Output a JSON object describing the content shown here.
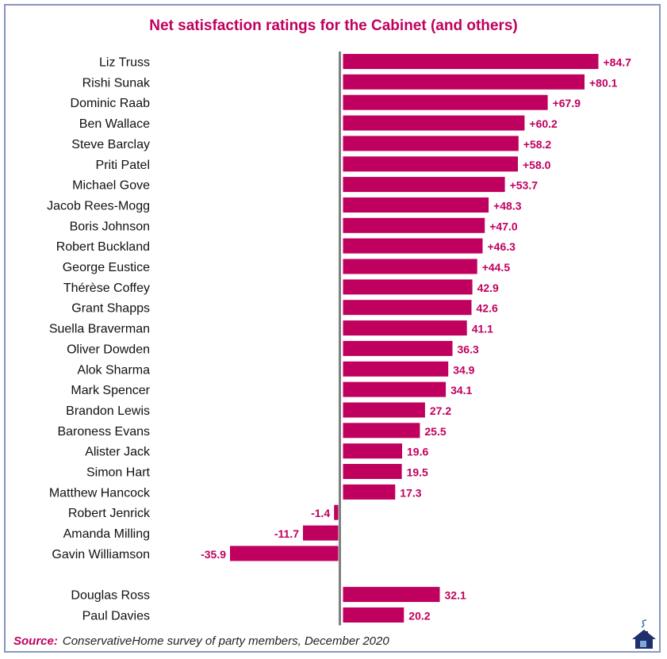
{
  "colors": {
    "bar": "#c0005e",
    "label": "#c0005e",
    "axis": "#808080",
    "border": "#8796c2"
  },
  "source": {
    "label": "Source:",
    "text": "ConservativeHome survey of party members, December 2020"
  },
  "logo_icon": "conservativehome-house-icon",
  "chart_data": {
    "type": "bar",
    "orientation": "horizontal",
    "title": "Net satisfaction ratings for the Cabinet (and others)",
    "xlim": [
      -50,
      90
    ],
    "grid": false,
    "legend": "none",
    "groups": [
      {
        "categories": [
          "Liz Truss",
          "Rishi Sunak",
          "Dominic Raab",
          "Ben Wallace",
          "Steve Barclay",
          "Priti Patel",
          "Michael Gove",
          "Jacob Rees-Mogg",
          "Boris Johnson",
          "Robert Buckland",
          "George Eustice",
          "Thérèse Coffey",
          "Grant Shapps",
          "Suella Braverman",
          "Oliver Dowden",
          "Alok Sharma",
          "Mark Spencer",
          "Brandon Lewis",
          "Baroness Evans",
          "Alister Jack",
          "Simon Hart",
          "Matthew Hancock",
          "Robert Jenrick",
          "Amanda Milling",
          "Gavin Williamson"
        ],
        "values": [
          84.7,
          80.1,
          67.9,
          60.2,
          58.2,
          58.0,
          53.7,
          48.3,
          47.0,
          46.3,
          44.5,
          42.9,
          42.6,
          41.1,
          36.3,
          34.9,
          34.1,
          27.2,
          25.5,
          19.6,
          19.5,
          17.3,
          -1.4,
          -11.7,
          -35.9
        ],
        "labels": [
          "+84.7",
          "+80.1",
          "+67.9",
          "+60.2",
          "+58.2",
          "+58.0",
          "+53.7",
          "+48.3",
          "+47.0",
          "+46.3",
          "+44.5",
          "42.9",
          "42.6",
          "41.1",
          "36.3",
          "34.9",
          "34.1",
          "27.2",
          "25.5",
          "19.6",
          "19.5",
          "17.3",
          "-1.4",
          "-11.7",
          "-35.9"
        ]
      },
      {
        "categories": [
          "Douglas Ross",
          "Paul Davies"
        ],
        "values": [
          32.1,
          20.2
        ],
        "labels": [
          "32.1",
          "20.2"
        ]
      }
    ]
  }
}
